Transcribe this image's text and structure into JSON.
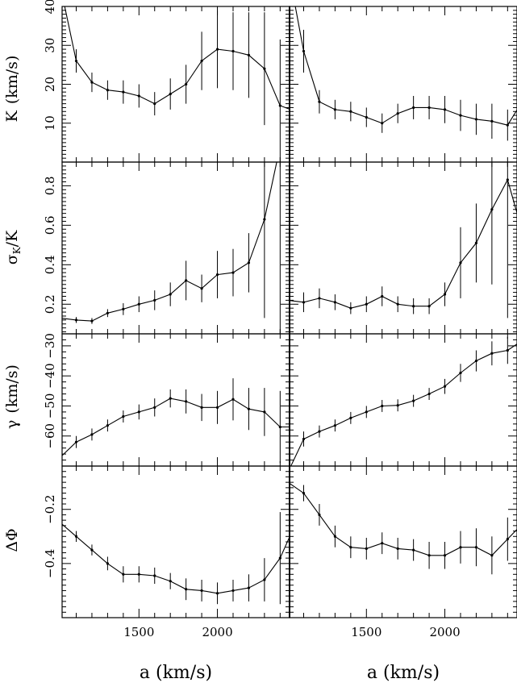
{
  "chart_data": [
    {
      "type": "line",
      "panel": "K-left",
      "ylabel_main": "K",
      "ylabel_unit": "(km/s)",
      "xlim": [
        1010,
        2460
      ],
      "ylim": [
        0,
        40
      ],
      "yticks_labeled": [
        10,
        20,
        30,
        40
      ],
      "x": [
        1000,
        1100,
        1200,
        1300,
        1400,
        1500,
        1600,
        1700,
        1800,
        1900,
        2000,
        2100,
        2200,
        2300,
        2400,
        2500
      ],
      "y": [
        45,
        26,
        20.5,
        18.5,
        18,
        17,
        15,
        17.5,
        20,
        26,
        29,
        28.5,
        27.5,
        24,
        14.5,
        13
      ],
      "err": [
        0,
        3,
        2.5,
        2.5,
        3,
        3,
        3,
        4,
        5,
        7.5,
        10,
        10,
        11,
        14.5,
        17,
        14
      ]
    },
    {
      "type": "line",
      "panel": "K-right",
      "xlim": [
        1010,
        2460
      ],
      "ylim": [
        0,
        40
      ],
      "x": [
        1000,
        1100,
        1200,
        1300,
        1400,
        1500,
        1600,
        1700,
        1800,
        1900,
        2000,
        2100,
        2200,
        2300,
        2400,
        2500
      ],
      "y": [
        50,
        28.5,
        15.5,
        13.5,
        13,
        11.5,
        10,
        12.5,
        14,
        14,
        13.5,
        12,
        11,
        10.5,
        9.5,
        16
      ],
      "err": [
        0,
        5.5,
        3,
        2.5,
        2.5,
        2.5,
        2.5,
        2.5,
        3,
        3,
        3.5,
        4,
        4,
        4.5,
        4,
        5
      ]
    },
    {
      "type": "line",
      "panel": "sigmaK-left",
      "ylabel_main": "σ",
      "ylabel_sub": "K",
      "ylabel_unit": "/K",
      "xlim": [
        1010,
        2460
      ],
      "ylim": [
        0.05,
        0.92
      ],
      "yticks_labeled": [
        0.2,
        0.4,
        0.6,
        0.8
      ],
      "x": [
        1000,
        1100,
        1200,
        1300,
        1400,
        1500,
        1600,
        1700,
        1800,
        1900,
        2000,
        2100,
        2200,
        2300,
        2400
      ],
      "y": [
        0.13,
        0.12,
        0.115,
        0.155,
        0.175,
        0.2,
        0.22,
        0.25,
        0.32,
        0.28,
        0.35,
        0.36,
        0.41,
        0.63,
        1.0
      ],
      "err": [
        0.01,
        0.015,
        0.015,
        0.02,
        0.03,
        0.04,
        0.05,
        0.06,
        0.1,
        0.07,
        0.12,
        0.12,
        0.15,
        0.5,
        1.0
      ]
    },
    {
      "type": "line",
      "panel": "sigmaK-right",
      "xlim": [
        1010,
        2460
      ],
      "ylim": [
        0.05,
        0.92
      ],
      "x": [
        1000,
        1100,
        1200,
        1300,
        1400,
        1500,
        1600,
        1700,
        1800,
        1900,
        2000,
        2100,
        2200,
        2300,
        2400,
        2500
      ],
      "y": [
        0.22,
        0.21,
        0.23,
        0.21,
        0.18,
        0.2,
        0.24,
        0.2,
        0.19,
        0.19,
        0.25,
        0.41,
        0.51,
        0.68,
        0.83,
        0.55
      ],
      "err": [
        0.05,
        0.05,
        0.05,
        0.04,
        0.03,
        0.04,
        0.05,
        0.04,
        0.04,
        0.04,
        0.06,
        0.18,
        0.2,
        0.38,
        0.7,
        0.55
      ]
    },
    {
      "type": "line",
      "panel": "gamma-left",
      "ylabel_main": "γ",
      "ylabel_unit": "(km/s)",
      "xlim": [
        1010,
        2460
      ],
      "ylim": [
        -70,
        -26
      ],
      "yticks_labeled": [
        -60,
        -50,
        -40,
        -30
      ],
      "x": [
        1000,
        1100,
        1200,
        1300,
        1400,
        1500,
        1600,
        1700,
        1800,
        1900,
        2000,
        2100,
        2200,
        2300,
        2400,
        2500
      ],
      "y": [
        -67,
        -62,
        -59.5,
        -56.5,
        -53.5,
        -52,
        -50.5,
        -47.5,
        -48.5,
        -50.5,
        -50.5,
        -47.8,
        -51,
        -52,
        -57,
        -57
      ],
      "err": [
        2,
        2,
        2,
        2,
        2,
        2.5,
        3,
        3,
        4,
        4.5,
        5.5,
        7,
        7,
        8,
        12,
        12
      ]
    },
    {
      "type": "line",
      "panel": "gamma-right",
      "xlim": [
        1010,
        2460
      ],
      "ylim": [
        -70,
        -26
      ],
      "x": [
        1000,
        1100,
        1200,
        1300,
        1400,
        1500,
        1600,
        1700,
        1800,
        1900,
        2000,
        2100,
        2200,
        2300,
        2400,
        2500
      ],
      "y": [
        -72,
        -61,
        -58.5,
        -56.5,
        -54,
        -52,
        -50,
        -49.8,
        -48.3,
        -46,
        -43.5,
        -39,
        -35,
        -32.5,
        -31.5,
        -28
      ],
      "err": [
        0,
        2.5,
        2,
        2,
        2,
        2,
        2,
        2,
        2,
        2,
        2.5,
        3,
        3.5,
        4,
        4.5,
        5
      ]
    },
    {
      "type": "line",
      "panel": "dphi-left",
      "ylabel_main": "ΔΦ",
      "xlim": [
        1010,
        2460
      ],
      "ylim": [
        -0.6,
        -0.04
      ],
      "yticks_labeled": [
        -0.4,
        -0.2
      ],
      "x": [
        1000,
        1100,
        1200,
        1300,
        1400,
        1500,
        1600,
        1700,
        1800,
        1900,
        2000,
        2100,
        2200,
        2300,
        2400,
        2500
      ],
      "y": [
        -0.25,
        -0.3,
        -0.35,
        -0.4,
        -0.44,
        -0.44,
        -0.445,
        -0.465,
        -0.495,
        -0.5,
        -0.51,
        -0.5,
        -0.49,
        -0.46,
        -0.38,
        -0.25
      ],
      "err": [
        0.01,
        0.02,
        0.02,
        0.025,
        0.03,
        0.03,
        0.03,
        0.03,
        0.04,
        0.04,
        0.04,
        0.04,
        0.05,
        0.08,
        0.17,
        0.2
      ]
    },
    {
      "type": "line",
      "panel": "dphi-right",
      "xlim": [
        1010,
        2460
      ],
      "ylim": [
        -0.6,
        -0.04
      ],
      "x": [
        1000,
        1100,
        1200,
        1300,
        1400,
        1500,
        1600,
        1700,
        1800,
        1900,
        2000,
        2100,
        2200,
        2300,
        2400,
        2500
      ],
      "y": [
        -0.1,
        -0.14,
        -0.22,
        -0.3,
        -0.34,
        -0.345,
        -0.325,
        -0.345,
        -0.35,
        -0.37,
        -0.37,
        -0.34,
        -0.34,
        -0.37,
        -0.31,
        -0.25
      ],
      "err": [
        0.02,
        0.03,
        0.04,
        0.04,
        0.04,
        0.04,
        0.04,
        0.04,
        0.04,
        0.05,
        0.05,
        0.06,
        0.07,
        0.07,
        0.08,
        0.1
      ]
    }
  ],
  "x_ticks_labeled": [
    1500,
    2000
  ],
  "x_axis_label": "a (km/s)"
}
